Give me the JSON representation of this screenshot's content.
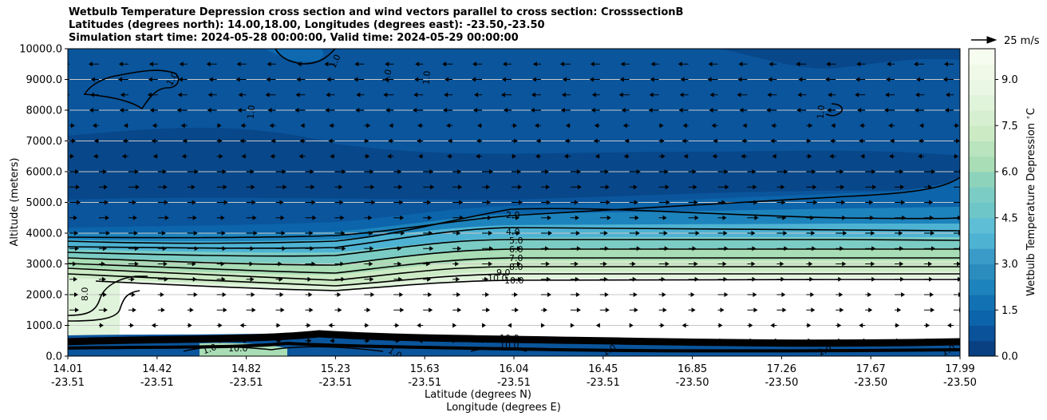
{
  "chart_data": {
    "type": "heatmap",
    "title_lines": [
      "Wetbulb Temperature Depression cross section and wind vectors parallel to cross section: CrosssectionB",
      "Latitudes (degrees north): 14.00,18.00, Longitudes (degrees east): -23.50,-23.50",
      "Simulation start time: 2024-05-28 00:00:00, Valid time: 2024-05-29 00:00:00"
    ],
    "ylabel": "Altitude (meters)",
    "xlabel_lat": "Latitude (degrees N)",
    "xlabel_lon": "Longitude (degrees E)",
    "ylim": [
      0,
      10000
    ],
    "y_ticks": [
      "0.0",
      "1000.0",
      "2000.0",
      "3000.0",
      "4000.0",
      "5000.0",
      "6000.0",
      "7000.0",
      "8000.0",
      "9000.0",
      "10000.0"
    ],
    "x_ticks_lat": [
      "14.01",
      "14.42",
      "14.82",
      "15.23",
      "15.63",
      "16.04",
      "16.45",
      "16.85",
      "17.26",
      "17.67",
      "17.99"
    ],
    "x_ticks_lon": [
      "-23.51",
      "-23.51",
      "-23.51",
      "-23.51",
      "-23.51",
      "-23.51",
      "-23.51",
      "-23.50",
      "-23.50",
      "-23.50",
      "-23.50"
    ],
    "colorbar": {
      "label": "Wetbulb Temperature Depression $^\\circ$C",
      "range": [
        0,
        10
      ],
      "ticks": [
        "0.0",
        "1.5",
        "3.0",
        "4.5",
        "6.0",
        "7.5",
        "9.0"
      ],
      "colors": [
        "#084081",
        "#0a529a",
        "#0c64aa",
        "#1271b2",
        "#1d83bc",
        "#2b8cbe",
        "#3a9ac8",
        "#4eb3d3",
        "#5dbed5",
        "#6fc6c8",
        "#7bccc4",
        "#8dd3bb",
        "#a8ddb5",
        "#b9e4bd",
        "#ccebc5",
        "#d6efd0",
        "#e0f3db",
        "#eaf7e5",
        "#f0f9e8",
        "#f7fcf0"
      ]
    },
    "wind_legend": "25 m/s",
    "contour_labels": [
      "1.0",
      "1.0",
      "1.0",
      "1.0",
      "1.0",
      "1.0",
      "2.0",
      "4.0",
      "5.0",
      "6.0",
      "7.0",
      "8.0",
      "9.0",
      "10.0",
      "10.0",
      "8.0",
      "1.0",
      "1.0",
      "1.0",
      "10.0",
      "10.0",
      "10.0",
      "1.0",
      "1.0"
    ]
  }
}
